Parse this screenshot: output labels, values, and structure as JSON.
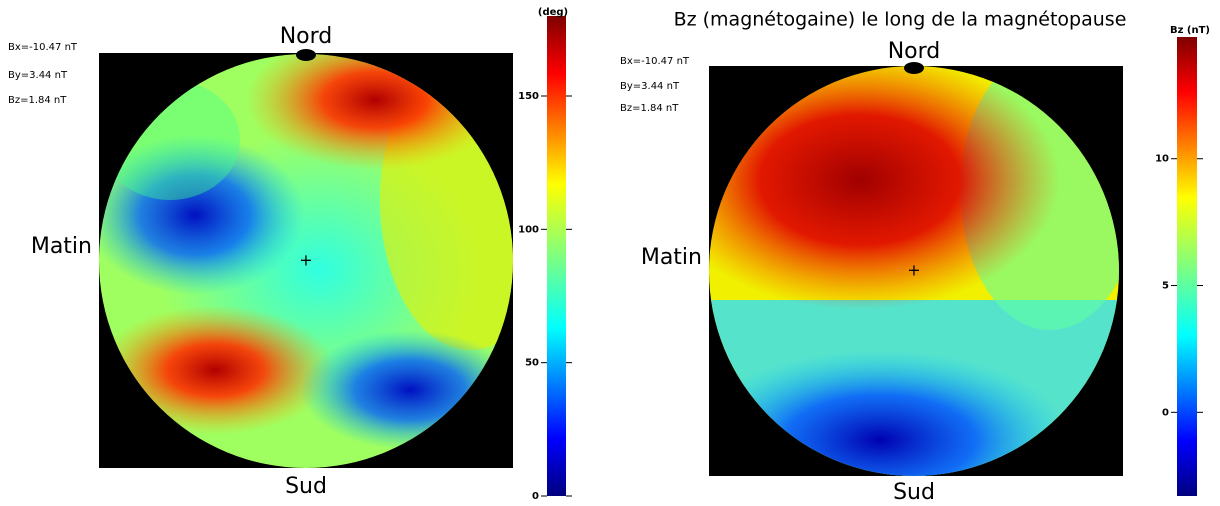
{
  "panels": [
    {
      "labels": {
        "north": "Nord",
        "south": "Sud",
        "west": "Matin"
      },
      "params": [
        "Bx=-10.47 nT",
        "By=3.44 nT",
        "Bz=1.84 nT"
      ],
      "colorbar": {
        "label": "(deg)",
        "ylim": [
          0,
          180
        ],
        "yticks": [
          0,
          50,
          100,
          150
        ]
      }
    },
    {
      "title": "Bz (magnétogaine) le long de la magnétopause",
      "labels": {
        "north": "Nord",
        "south": "Sud",
        "west": "Matin"
      },
      "params": [
        "Bx=-10.47 nT",
        "By=3.44 nT",
        "Bz=1.84 nT"
      ],
      "colorbar": {
        "label": "Bz (nT)",
        "ylim": [
          -3.3,
          14.8
        ],
        "yticks": [
          0,
          5,
          10
        ]
      }
    }
  ]
}
